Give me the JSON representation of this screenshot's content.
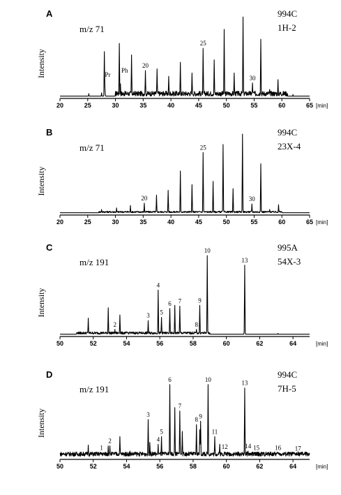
{
  "chart_data": [
    {
      "panel": "A",
      "type": "line",
      "mz": "m/z 71",
      "sample": [
        "994C",
        "1H-2"
      ],
      "ylabel": "Intensity",
      "xunit": "[min]",
      "xlim": [
        20,
        65
      ],
      "xticks": [
        20,
        25,
        30,
        35,
        40,
        45,
        50,
        55,
        60,
        65
      ],
      "baseline": 0.02,
      "noise": {
        "from": 30,
        "to": 61,
        "level": 0.06
      },
      "peaks": [
        {
          "x": 25.2,
          "h": 0.05
        },
        {
          "x": 27.5,
          "h": 0.06
        },
        {
          "x": 28.0,
          "h": 0.56
        },
        {
          "x": 28.1,
          "h": 0.13,
          "label": "Pr"
        },
        {
          "x": 30.3,
          "h": 0.07
        },
        {
          "x": 30.7,
          "h": 0.66
        },
        {
          "x": 30.9,
          "h": 0.17,
          "label": "Ph"
        },
        {
          "x": 32.9,
          "h": 0.52
        },
        {
          "x": 35.4,
          "h": 0.33,
          "label": "20"
        },
        {
          "x": 37.5,
          "h": 0.35
        },
        {
          "x": 39.6,
          "h": 0.26
        },
        {
          "x": 41.7,
          "h": 0.43
        },
        {
          "x": 43.8,
          "h": 0.3
        },
        {
          "x": 45.8,
          "h": 0.6,
          "label": "25"
        },
        {
          "x": 47.8,
          "h": 0.46
        },
        {
          "x": 49.6,
          "h": 0.83
        },
        {
          "x": 51.4,
          "h": 0.3
        },
        {
          "x": 53.0,
          "h": 0.98
        },
        {
          "x": 54.7,
          "h": 0.18,
          "label": "30"
        },
        {
          "x": 56.2,
          "h": 0.71
        },
        {
          "x": 57.8,
          "h": 0.1
        },
        {
          "x": 59.3,
          "h": 0.22
        },
        {
          "x": 62.0,
          "h": 0.04
        }
      ]
    },
    {
      "panel": "B",
      "type": "line",
      "mz": "m/z 71",
      "sample": [
        "994C",
        "23X-4"
      ],
      "ylabel": "Intensity",
      "xunit": "[min]",
      "xlim": [
        20,
        65
      ],
      "xticks": [
        20,
        25,
        30,
        35,
        40,
        45,
        50,
        55,
        60,
        65
      ],
      "baseline": 0.02,
      "noise": {
        "from": 27,
        "to": 60,
        "level": 0.02
      },
      "peaks": [
        {
          "x": 25.1,
          "h": 0.02
        },
        {
          "x": 27.5,
          "h": 0.06
        },
        {
          "x": 30.2,
          "h": 0.08
        },
        {
          "x": 32.7,
          "h": 0.11
        },
        {
          "x": 35.2,
          "h": 0.14,
          "label": "20"
        },
        {
          "x": 37.4,
          "h": 0.24
        },
        {
          "x": 39.5,
          "h": 0.3
        },
        {
          "x": 41.7,
          "h": 0.54
        },
        {
          "x": 43.8,
          "h": 0.37
        },
        {
          "x": 45.8,
          "h": 0.77,
          "label": "25"
        },
        {
          "x": 47.6,
          "h": 0.41
        },
        {
          "x": 49.4,
          "h": 0.87
        },
        {
          "x": 51.2,
          "h": 0.32
        },
        {
          "x": 52.9,
          "h": 1.0
        },
        {
          "x": 54.6,
          "h": 0.13,
          "label": "30"
        },
        {
          "x": 56.2,
          "h": 0.63
        },
        {
          "x": 57.8,
          "h": 0.06
        },
        {
          "x": 59.4,
          "h": 0.12
        }
      ]
    },
    {
      "panel": "C",
      "type": "line",
      "mz": "m/z 191",
      "sample": [
        "995A",
        "54X-3"
      ],
      "ylabel": "Intensity",
      "xunit": "[min]",
      "xlim": [
        50,
        65
      ],
      "xticks": [
        50,
        52,
        54,
        56,
        58,
        60,
        62,
        64
      ],
      "baseline": 0.02,
      "noise": {
        "from": 51,
        "to": 59,
        "level": 0.03
      },
      "peaks": [
        {
          "x": 51.7,
          "h": 0.22
        },
        {
          "x": 52.9,
          "h": 0.35
        },
        {
          "x": 53.3,
          "h": 0.08,
          "label": "2"
        },
        {
          "x": 53.6,
          "h": 0.26
        },
        {
          "x": 54.2,
          "h": 0.04
        },
        {
          "x": 55.3,
          "h": 0.19,
          "label": "3"
        },
        {
          "x": 55.9,
          "h": 0.57,
          "label": "4"
        },
        {
          "x": 56.1,
          "h": 0.23,
          "label": "5"
        },
        {
          "x": 56.6,
          "h": 0.34,
          "label": "6"
        },
        {
          "x": 56.9,
          "h": 0.38
        },
        {
          "x": 57.2,
          "h": 0.37,
          "label": "7"
        },
        {
          "x": 58.2,
          "h": 0.08,
          "label": "8"
        },
        {
          "x": 58.4,
          "h": 0.14
        },
        {
          "x": 58.85,
          "h": 1.0,
          "label": "10"
        },
        {
          "x": 58.4,
          "h": 0.38,
          "label": "9"
        },
        {
          "x": 61.1,
          "h": 0.88,
          "label": "13"
        },
        {
          "x": 63.1,
          "h": 0.03
        }
      ]
    },
    {
      "panel": "D",
      "type": "line",
      "mz": "m/z 191",
      "sample": [
        "994C",
        "7H-5"
      ],
      "ylabel": "Intensity",
      "xunit": "[min]",
      "xlim": [
        50,
        65
      ],
      "xticks": [
        50,
        52,
        54,
        56,
        58,
        60,
        62,
        64
      ],
      "baseline": 0.03,
      "noise": {
        "from": 50,
        "to": 65,
        "level": 0.05
      },
      "peaks": [
        {
          "x": 50.3,
          "h": 0.04
        },
        {
          "x": 51.7,
          "h": 0.16
        },
        {
          "x": 52.5,
          "h": 0.07,
          "label": "1"
        },
        {
          "x": 52.9,
          "h": 0.15
        },
        {
          "x": 53.0,
          "h": 0.15,
          "label": "2"
        },
        {
          "x": 53.6,
          "h": 0.26
        },
        {
          "x": 54.2,
          "h": 0.09
        },
        {
          "x": 55.3,
          "h": 0.46,
          "label": "3"
        },
        {
          "x": 55.4,
          "h": 0.19
        },
        {
          "x": 55.9,
          "h": 0.17,
          "label": "4"
        },
        {
          "x": 56.1,
          "h": 0.26,
          "label": "5"
        },
        {
          "x": 56.6,
          "h": 0.87,
          "label": "6"
        },
        {
          "x": 56.9,
          "h": 0.6
        },
        {
          "x": 57.2,
          "h": 0.56,
          "label": "7"
        },
        {
          "x": 57.35,
          "h": 0.32
        },
        {
          "x": 58.2,
          "h": 0.4,
          "label": "8"
        },
        {
          "x": 58.4,
          "h": 0.34
        },
        {
          "x": 58.45,
          "h": 0.44,
          "label": "9"
        },
        {
          "x": 58.9,
          "h": 0.87,
          "label": "10"
        },
        {
          "x": 59.3,
          "h": 0.26,
          "label": "11"
        },
        {
          "x": 59.6,
          "h": 0.17
        },
        {
          "x": 59.9,
          "h": 0.08,
          "label": "12"
        },
        {
          "x": 61.1,
          "h": 0.83,
          "label": "13"
        },
        {
          "x": 61.3,
          "h": 0.09,
          "label": "14"
        },
        {
          "x": 61.8,
          "h": 0.07,
          "label": "15"
        },
        {
          "x": 63.1,
          "h": 0.07,
          "label": "16"
        },
        {
          "x": 64.3,
          "h": 0.06,
          "label": "17"
        }
      ]
    }
  ]
}
